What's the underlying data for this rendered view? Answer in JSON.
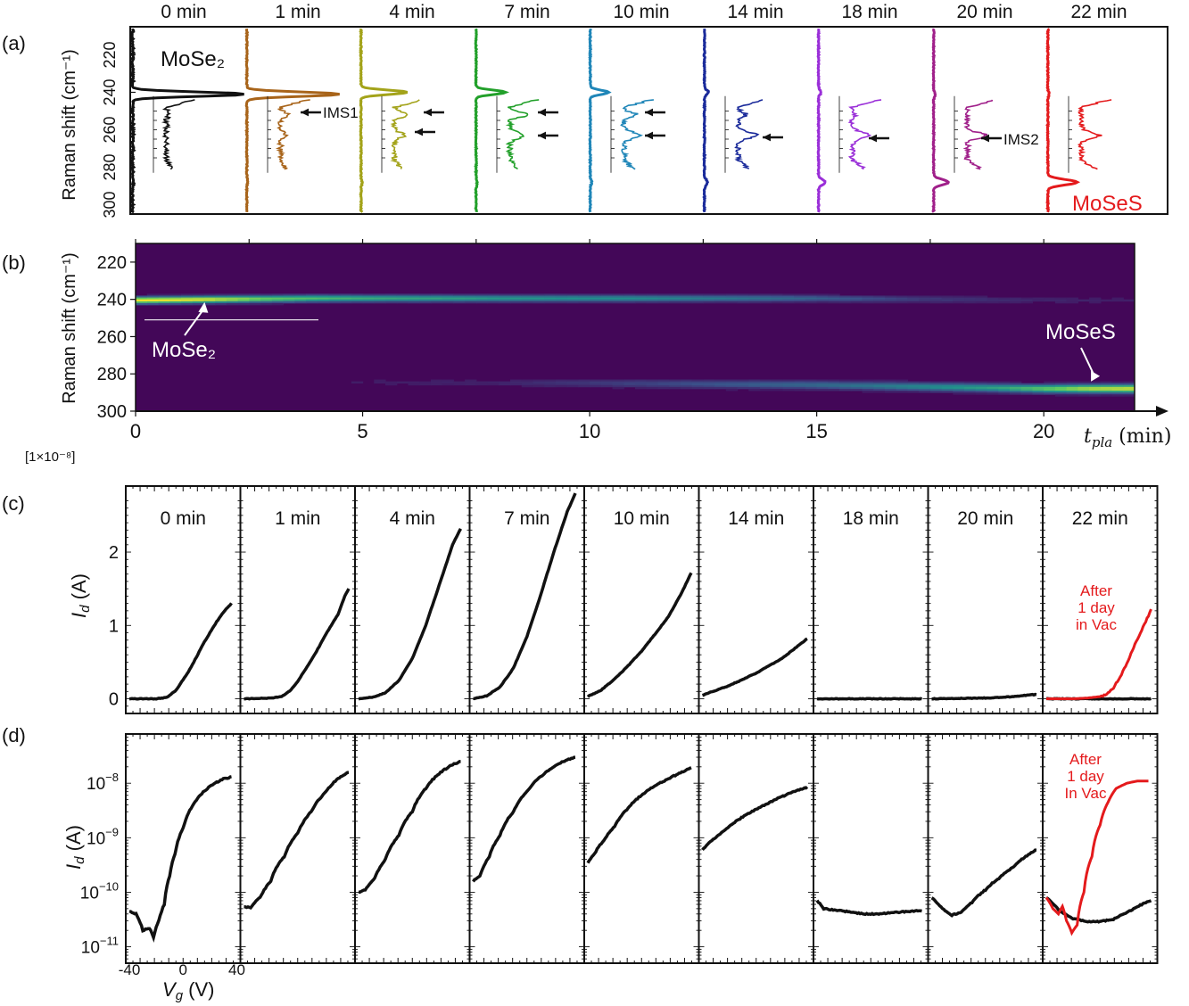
{
  "figure": {
    "panel_a_label": "(a)",
    "panel_b_label": "(b)",
    "panel_c_label": "(c)",
    "panel_d_label": "(d)"
  },
  "chart_data": [
    {
      "panel": "a",
      "type": "line",
      "ylabel": "Raman shift (cm⁻¹)",
      "y_axis": "Raman shift (cm-1)",
      "ylim": [
        305,
        205
      ],
      "yticks": [
        220,
        240,
        260,
        280,
        300
      ],
      "time_labels": [
        "0 min",
        "1 min",
        "4 min",
        "7 min",
        "10 min",
        "14 min",
        "18 min",
        "20 min",
        "22 min"
      ],
      "series_colors": [
        "#111111",
        "#a8641a",
        "#a3a31a",
        "#22a02a",
        "#1f86b8",
        "#1a2a9a",
        "#9a2fd8",
        "#a0208a",
        "#e41a1c"
      ],
      "peaks_main": [
        [
          241,
          3.4
        ],
        [
          241,
          2.8
        ],
        [
          240,
          1.4
        ],
        [
          240,
          0.9
        ],
        [
          240,
          0.55
        ],
        [
          240,
          0.12
        ],
        [
          240,
          0.08
        ],
        [
          241,
          0.05
        ],
        [
          241,
          0.04
        ]
      ],
      "peaks_mosses": [
        [
          288,
          0.02
        ],
        [
          288,
          0.02
        ],
        [
          288,
          0.03
        ],
        [
          288,
          0.03
        ],
        [
          288,
          0.04
        ],
        [
          288,
          0.09
        ],
        [
          288,
          0.2
        ],
        [
          288,
          0.45
        ],
        [
          288,
          0.9
        ]
      ],
      "bands": [
        {
          "range": [
            235,
            246
          ],
          "color": "#cdeec9"
        },
        {
          "range": [
            249,
            254
          ],
          "color": "#fbd8c8"
        },
        {
          "range": [
            259,
            266
          ],
          "color": "#f8c6e6"
        },
        {
          "range": [
            276,
            292
          ],
          "color": "#b9e6f5"
        }
      ],
      "inset_range": [
        245,
        280
      ],
      "annotations": [
        {
          "text": "MoSe₂",
          "color": "#111111"
        },
        {
          "text": "IMS1",
          "color": "#111111"
        },
        {
          "text": "IMS2",
          "color": "#111111"
        },
        {
          "text": "MoSeS",
          "color": "#e41a1c"
        }
      ]
    },
    {
      "panel": "b",
      "type": "heatmap",
      "xlabel": "t_pla (min)",
      "ylabel": "Raman shift (cm⁻¹)",
      "xlim": [
        0,
        22
      ],
      "ylim": [
        300,
        210
      ],
      "xticks": [
        0,
        5,
        10,
        15,
        20
      ],
      "yticks": [
        220,
        240,
        260,
        280,
        300
      ],
      "colormap": "viridis",
      "ridges": [
        {
          "name": "MoSe₂",
          "shift": [
            [
              0,
              239.5
            ],
            [
              4,
              238.5
            ],
            [
              10,
              238.5
            ],
            [
              15,
              238.5
            ],
            [
              20,
              239.5
            ],
            [
              22,
              239.5
            ]
          ],
          "intensity": [
            [
              0,
              1.0
            ],
            [
              1.5,
              0.95
            ],
            [
              3,
              0.7
            ],
            [
              5,
              0.55
            ],
            [
              8,
              0.45
            ],
            [
              11,
              0.4
            ],
            [
              14,
              0.28
            ],
            [
              17,
              0.12
            ],
            [
              20,
              0.05
            ],
            [
              22,
              0.04
            ]
          ]
        },
        {
          "name": "MoSeS",
          "shift": [
            [
              0,
              283
            ],
            [
              10,
              284
            ],
            [
              15,
              285
            ],
            [
              20,
              287
            ],
            [
              22,
              287
            ]
          ],
          "intensity": [
            [
              0,
              0.0
            ],
            [
              8,
              0.05
            ],
            [
              12,
              0.16
            ],
            [
              16,
              0.3
            ],
            [
              19,
              0.5
            ],
            [
              21,
              0.85
            ],
            [
              22,
              0.9
            ]
          ]
        }
      ],
      "annotations": [
        {
          "text": "MoSe₂",
          "x": 1.5,
          "y": 241
        },
        {
          "text": "MoSeS",
          "x": 21,
          "y": 286
        }
      ]
    },
    {
      "panel": "c",
      "type": "line",
      "xlabel": "V_g (V)",
      "ylabel": "I_d (A)",
      "scale_note": "[1×10⁻⁸]",
      "ylim": [
        -0.2,
        2.9
      ],
      "yticks": [
        0,
        1,
        2
      ],
      "xlim": [
        -40,
        40
      ],
      "time_labels": [
        "0 min",
        "1 min",
        "4 min",
        "7 min",
        "10 min",
        "14 min",
        "18 min",
        "20 min",
        "22 min"
      ],
      "curves": [
        [
          [
            -40,
            0.0
          ],
          [
            -20,
            0.0
          ],
          [
            -12,
            0.02
          ],
          [
            -5,
            0.12
          ],
          [
            0,
            0.26
          ],
          [
            5,
            0.4
          ],
          [
            10,
            0.57
          ],
          [
            15,
            0.75
          ],
          [
            20,
            0.9
          ],
          [
            25,
            1.05
          ],
          [
            30,
            1.18
          ],
          [
            36,
            1.3
          ]
        ],
        [
          [
            -40,
            0.0
          ],
          [
            -20,
            0.01
          ],
          [
            -12,
            0.03
          ],
          [
            -5,
            0.12
          ],
          [
            0,
            0.24
          ],
          [
            5,
            0.38
          ],
          [
            10,
            0.52
          ],
          [
            15,
            0.68
          ],
          [
            20,
            0.85
          ],
          [
            25,
            1.0
          ],
          [
            30,
            1.15
          ],
          [
            35,
            1.4
          ],
          [
            38,
            1.5
          ]
        ],
        [
          [
            -40,
            0.0
          ],
          [
            -30,
            0.02
          ],
          [
            -20,
            0.08
          ],
          [
            -10,
            0.25
          ],
          [
            0,
            0.55
          ],
          [
            10,
            1.0
          ],
          [
            20,
            1.55
          ],
          [
            30,
            2.1
          ],
          [
            36,
            2.32
          ]
        ],
        [
          [
            -40,
            0.0
          ],
          [
            -30,
            0.04
          ],
          [
            -20,
            0.16
          ],
          [
            -10,
            0.42
          ],
          [
            0,
            0.85
          ],
          [
            10,
            1.4
          ],
          [
            20,
            2.0
          ],
          [
            30,
            2.55
          ],
          [
            36,
            2.8
          ]
        ],
        [
          [
            -40,
            0.03
          ],
          [
            -30,
            0.12
          ],
          [
            -20,
            0.27
          ],
          [
            -10,
            0.45
          ],
          [
            0,
            0.65
          ],
          [
            10,
            0.88
          ],
          [
            20,
            1.12
          ],
          [
            30,
            1.45
          ],
          [
            37,
            1.72
          ]
        ],
        [
          [
            -40,
            0.05
          ],
          [
            -20,
            0.18
          ],
          [
            0,
            0.35
          ],
          [
            20,
            0.56
          ],
          [
            38,
            0.82
          ]
        ],
        [
          [
            -40,
            0.0
          ],
          [
            38,
            0.0
          ]
        ],
        [
          [
            -40,
            0.0
          ],
          [
            0,
            0.01
          ],
          [
            20,
            0.03
          ],
          [
            38,
            0.06
          ]
        ],
        [
          [
            -40,
            0.0
          ],
          [
            38,
            0.0
          ]
        ]
      ],
      "after_1_day_curve": [
        [
          -40,
          0.0
        ],
        [
          -20,
          0.0
        ],
        [
          -10,
          0.01
        ],
        [
          0,
          0.03
        ],
        [
          5,
          0.06
        ],
        [
          10,
          0.15
        ],
        [
          15,
          0.3
        ],
        [
          20,
          0.48
        ],
        [
          25,
          0.7
        ],
        [
          30,
          0.9
        ],
        [
          34,
          1.05
        ],
        [
          38,
          1.22
        ]
      ],
      "annotation": "After 1 day in Vac",
      "annotation_lines": [
        "After",
        "1 day",
        "in Vac"
      ],
      "annotation_color": "#e41a1c"
    },
    {
      "panel": "d",
      "type": "line",
      "xlabel": "V_g (V)",
      "ylabel": "I_d (A)",
      "yscale": "log",
      "ylim": [
        5e-12,
        8e-08
      ],
      "ytick_exponents": [
        -8,
        -9,
        -10,
        -11
      ],
      "xlim": [
        -40,
        40
      ],
      "xticks": [
        -40,
        0,
        40
      ],
      "curves": [
        [
          [
            -40,
            4.5e-11
          ],
          [
            -35,
            4e-11
          ],
          [
            -30,
            2e-11
          ],
          [
            -25,
            2.2e-11
          ],
          [
            -22,
            1.5e-11
          ],
          [
            -18,
            3e-11
          ],
          [
            -14,
            6e-11
          ],
          [
            -10,
            2e-10
          ],
          [
            -6,
            5e-10
          ],
          [
            0,
            1.5e-09
          ],
          [
            6,
            3.5e-09
          ],
          [
            14,
            6.5e-09
          ],
          [
            22,
            9.5e-09
          ],
          [
            30,
            1.2e-08
          ],
          [
            36,
            1.3e-08
          ]
        ],
        [
          [
            -40,
            5.5e-11
          ],
          [
            -35,
            5.2e-11
          ],
          [
            -28,
            8e-11
          ],
          [
            -20,
            1.6e-10
          ],
          [
            -10,
            4.5e-10
          ],
          [
            0,
            1.2e-09
          ],
          [
            10,
            3e-09
          ],
          [
            20,
            6.5e-09
          ],
          [
            30,
            1.2e-08
          ],
          [
            38,
            1.6e-08
          ]
        ],
        [
          [
            -40,
            1e-10
          ],
          [
            -35,
            1.1e-10
          ],
          [
            -28,
            1.8e-10
          ],
          [
            -20,
            4e-10
          ],
          [
            -10,
            1.1e-09
          ],
          [
            0,
            3e-09
          ],
          [
            10,
            8e-09
          ],
          [
            20,
            1.5e-08
          ],
          [
            30,
            2.2e-08
          ],
          [
            36,
            2.5e-08
          ]
        ],
        [
          [
            -40,
            1.6e-10
          ],
          [
            -35,
            2e-10
          ],
          [
            -28,
            4.5e-10
          ],
          [
            -20,
            1.1e-09
          ],
          [
            -10,
            3e-09
          ],
          [
            0,
            7e-09
          ],
          [
            10,
            1.3e-08
          ],
          [
            20,
            2e-08
          ],
          [
            30,
            2.7e-08
          ],
          [
            36,
            3e-08
          ]
        ],
        [
          [
            -40,
            3.5e-10
          ],
          [
            -35,
            5e-10
          ],
          [
            -28,
            9e-10
          ],
          [
            -20,
            1.6e-09
          ],
          [
            -10,
            3.5e-09
          ],
          [
            0,
            6e-09
          ],
          [
            10,
            9e-09
          ],
          [
            20,
            1.2e-08
          ],
          [
            30,
            1.6e-08
          ],
          [
            37,
            1.9e-08
          ]
        ],
        [
          [
            -40,
            6e-10
          ],
          [
            -30,
            1e-09
          ],
          [
            -20,
            1.6e-09
          ],
          [
            -10,
            2.4e-09
          ],
          [
            0,
            3.3e-09
          ],
          [
            10,
            4.4e-09
          ],
          [
            20,
            5.8e-09
          ],
          [
            30,
            7.3e-09
          ],
          [
            38,
            8.5e-09
          ]
        ],
        [
          [
            -40,
            7e-11
          ],
          [
            -35,
            5e-11
          ],
          [
            -20,
            4.5e-11
          ],
          [
            -5,
            4e-11
          ],
          [
            5,
            4e-11
          ],
          [
            15,
            4.2e-11
          ],
          [
            25,
            4.4e-11
          ],
          [
            38,
            4.6e-11
          ]
        ],
        [
          [
            -40,
            8e-11
          ],
          [
            -32,
            5e-11
          ],
          [
            -25,
            3.8e-11
          ],
          [
            -18,
            4.3e-11
          ],
          [
            -10,
            6.5e-11
          ],
          [
            0,
            1.1e-10
          ],
          [
            10,
            1.8e-10
          ],
          [
            20,
            2.8e-10
          ],
          [
            30,
            4.5e-10
          ],
          [
            38,
            6e-10
          ]
        ],
        [
          [
            -40,
            8e-11
          ],
          [
            -30,
            4.5e-11
          ],
          [
            -20,
            3.3e-11
          ],
          [
            -10,
            2.9e-11
          ],
          [
            0,
            2.9e-11
          ],
          [
            10,
            3.2e-11
          ],
          [
            20,
            4.2e-11
          ],
          [
            30,
            5.8e-11
          ],
          [
            38,
            7e-11
          ]
        ]
      ],
      "after_1_day_curve": [
        [
          -40,
          8e-11
        ],
        [
          -35,
          5e-11
        ],
        [
          -31,
          4e-11
        ],
        [
          -28,
          5.5e-11
        ],
        [
          -25,
          3e-11
        ],
        [
          -21,
          1.8e-11
        ],
        [
          -17,
          2.5e-11
        ],
        [
          -12,
          1e-10
        ],
        [
          -6,
          4.5e-10
        ],
        [
          0,
          1.7e-09
        ],
        [
          6,
          4.5e-09
        ],
        [
          12,
          8e-09
        ],
        [
          20,
          1e-08
        ],
        [
          28,
          1.1e-08
        ],
        [
          36,
          1.1e-08
        ]
      ],
      "annotation": "After 1 day In Vac",
      "annotation_lines": [
        "After",
        "1 day",
        "In Vac"
      ],
      "annotation_color": "#e41a1c"
    }
  ]
}
